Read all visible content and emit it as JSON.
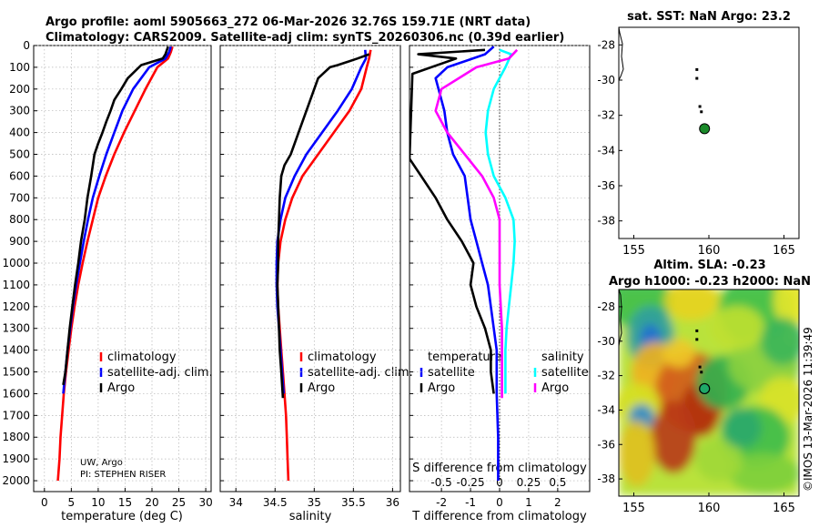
{
  "header": {
    "line1": "Argo profile: aoml 5905663_272 06-Mar-2026 32.76S 159.71E (NRT data)",
    "line2": "Climatology: CARS2009. Satellite-adj clim: synTS_20260306.nc (0.39d earlier)"
  },
  "credits": {
    "institution": "UW, Argo",
    "pi": "PI: STEPHEN RISER"
  },
  "watermark": "©IMOS 13-Mar-2026 11:39:49",
  "colors": {
    "climatology": "#ff0000",
    "satellite": "#0000ff",
    "argo": "#000000",
    "sat_salinity": "#00ffff",
    "argo_salinity": "#ff00ff"
  },
  "chart_data": [
    {
      "id": "temperature",
      "type": "line",
      "xlabel": "temperature (deg C)",
      "xlim": [
        -2,
        31
      ],
      "xticks": [
        0,
        5,
        10,
        15,
        20,
        25,
        30
      ],
      "ylim": [
        2050,
        0
      ],
      "yticks": [
        0,
        100,
        200,
        300,
        400,
        500,
        600,
        700,
        800,
        900,
        1000,
        1100,
        1200,
        1300,
        1400,
        1500,
        1600,
        1700,
        1800,
        1900,
        2000
      ],
      "legend": {
        "position": "lower-center",
        "entries": [
          "climatology",
          "satellite-adj. clim.",
          "Argo"
        ]
      },
      "series": [
        {
          "name": "climatology",
          "color": "#ff0000",
          "points": [
            [
              23.8,
              5
            ],
            [
              23.5,
              30
            ],
            [
              23,
              60
            ],
            [
              21,
              100
            ],
            [
              18.8,
              200
            ],
            [
              16.8,
              300
            ],
            [
              14.8,
              400
            ],
            [
              13,
              500
            ],
            [
              11.4,
              600
            ],
            [
              10,
              700
            ],
            [
              9,
              800
            ],
            [
              8,
              900
            ],
            [
              7.1,
              1000
            ],
            [
              6.3,
              1100
            ],
            [
              5.6,
              1200
            ],
            [
              5,
              1300
            ],
            [
              4.5,
              1400
            ],
            [
              4,
              1500
            ],
            [
              3.6,
              1600
            ],
            [
              3.3,
              1700
            ],
            [
              3,
              1800
            ],
            [
              2.8,
              1900
            ],
            [
              2.5,
              2000
            ]
          ]
        },
        {
          "name": "satellite-adj. clim.",
          "color": "#0000ff",
          "points": [
            [
              23.5,
              5
            ],
            [
              23.2,
              30
            ],
            [
              22.5,
              60
            ],
            [
              19.5,
              100
            ],
            [
              16.5,
              200
            ],
            [
              14.5,
              300
            ],
            [
              13,
              400
            ],
            [
              11.5,
              500
            ],
            [
              10.2,
              600
            ],
            [
              9,
              700
            ],
            [
              8.1,
              800
            ],
            [
              7.3,
              900
            ],
            [
              6.6,
              1000
            ],
            [
              5.9,
              1100
            ],
            [
              5.3,
              1200
            ],
            [
              4.8,
              1300
            ],
            [
              4.3,
              1400
            ],
            [
              3.9,
              1500
            ],
            [
              3.5,
              1600
            ]
          ]
        },
        {
          "name": "Argo",
          "color": "#000000",
          "points": [
            [
              23,
              5
            ],
            [
              22.5,
              40
            ],
            [
              22,
              60
            ],
            [
              18,
              90
            ],
            [
              15.5,
              150
            ],
            [
              14.3,
              200
            ],
            [
              13,
              250
            ],
            [
              12.3,
              300
            ],
            [
              11.5,
              350
            ],
            [
              10.8,
              400
            ],
            [
              10,
              450
            ],
            [
              9.3,
              500
            ],
            [
              8.7,
              600
            ],
            [
              8,
              700
            ],
            [
              7.5,
              800
            ],
            [
              6.8,
              900
            ],
            [
              6.3,
              1000
            ],
            [
              5.7,
              1100
            ],
            [
              5.2,
              1200
            ],
            [
              4.7,
              1300
            ],
            [
              4.3,
              1400
            ],
            [
              3.9,
              1500
            ],
            [
              3.5,
              1560
            ]
          ]
        }
      ]
    },
    {
      "id": "salinity",
      "type": "line",
      "xlabel": "salinity",
      "xlim": [
        33.8,
        36.1
      ],
      "xticks": [
        34,
        34.5,
        35,
        35.5,
        36
      ],
      "ylim": [
        2050,
        0
      ],
      "legend": {
        "position": "lower-center",
        "entries": [
          "climatology",
          "satellite-adj. clim.",
          "Argo"
        ]
      },
      "series": [
        {
          "name": "climatology",
          "color": "#ff0000",
          "points": [
            [
              35.72,
              20
            ],
            [
              35.7,
              60
            ],
            [
              35.67,
              100
            ],
            [
              35.6,
              200
            ],
            [
              35.45,
              300
            ],
            [
              35.25,
              400
            ],
            [
              35.05,
              500
            ],
            [
              34.85,
              600
            ],
            [
              34.72,
              700
            ],
            [
              34.63,
              800
            ],
            [
              34.57,
              900
            ],
            [
              34.54,
              1000
            ],
            [
              34.53,
              1100
            ],
            [
              34.54,
              1200
            ],
            [
              34.56,
              1300
            ],
            [
              34.58,
              1400
            ],
            [
              34.6,
              1500
            ],
            [
              34.62,
              1600
            ],
            [
              34.64,
              1700
            ],
            [
              34.65,
              1800
            ],
            [
              34.66,
              1900
            ],
            [
              34.67,
              2000
            ]
          ]
        },
        {
          "name": "satellite-adj. clim.",
          "color": "#0000ff",
          "points": [
            [
              35.65,
              20
            ],
            [
              35.66,
              60
            ],
            [
              35.6,
              100
            ],
            [
              35.48,
              200
            ],
            [
              35.3,
              300
            ],
            [
              35.1,
              400
            ],
            [
              34.9,
              500
            ],
            [
              34.75,
              600
            ],
            [
              34.63,
              700
            ],
            [
              34.57,
              800
            ],
            [
              34.53,
              900
            ],
            [
              34.52,
              1000
            ],
            [
              34.52,
              1100
            ],
            [
              34.53,
              1200
            ],
            [
              34.55,
              1300
            ],
            [
              34.57,
              1400
            ],
            [
              34.59,
              1500
            ],
            [
              34.61,
              1600
            ]
          ]
        },
        {
          "name": "Argo",
          "color": "#000000",
          "points": [
            [
              35.7,
              40
            ],
            [
              35.55,
              60
            ],
            [
              35.3,
              90
            ],
            [
              35.2,
              100
            ],
            [
              35.05,
              150
            ],
            [
              35,
              200
            ],
            [
              34.9,
              300
            ],
            [
              34.8,
              400
            ],
            [
              34.7,
              500
            ],
            [
              34.62,
              550
            ],
            [
              34.58,
              600
            ],
            [
              34.56,
              700
            ],
            [
              34.55,
              800
            ],
            [
              34.54,
              900
            ],
            [
              34.54,
              1000
            ],
            [
              34.53,
              1100
            ],
            [
              34.54,
              1200
            ],
            [
              34.55,
              1300
            ],
            [
              34.56,
              1400
            ],
            [
              34.58,
              1500
            ],
            [
              34.6,
              1620
            ]
          ]
        }
      ]
    },
    {
      "id": "difference",
      "type": "line",
      "xlabel": "T difference from climatology",
      "x2label": "S difference from climatology",
      "xlim": [
        -3.1,
        3.1
      ],
      "xticks": [
        -2,
        -1,
        0,
        1,
        2
      ],
      "x2lim": [
        -0.775,
        0.775
      ],
      "x2ticks": [
        -0.5,
        -0.25,
        0,
        0.25,
        0.5
      ],
      "ylim": [
        2050,
        0
      ],
      "legend": {
        "position": "lower-center",
        "group_titles": [
          "temperature",
          "salinity"
        ],
        "entries": [
          "satellite",
          "Argo",
          "satellite",
          "Argo"
        ]
      },
      "series": [
        {
          "name": "satellite (temperature)",
          "color": "#0000ff",
          "axis": "T",
          "points": [
            [
              -0.2,
              5
            ],
            [
              -0.5,
              40
            ],
            [
              -1.8,
              100
            ],
            [
              -2.2,
              150
            ],
            [
              -2.1,
              200
            ],
            [
              -1.9,
              300
            ],
            [
              -1.8,
              400
            ],
            [
              -1.6,
              500
            ],
            [
              -1.2,
              600
            ],
            [
              -1.1,
              700
            ],
            [
              -1,
              800
            ],
            [
              -0.8,
              900
            ],
            [
              -0.6,
              1000
            ],
            [
              -0.4,
              1100
            ],
            [
              -0.3,
              1200
            ],
            [
              -0.2,
              1300
            ],
            [
              -0.1,
              1400
            ],
            [
              -0.1,
              1500
            ],
            [
              -0.1,
              1600
            ],
            [
              -0.05,
              1800
            ],
            [
              -0.05,
              2000
            ]
          ]
        },
        {
          "name": "Argo (temperature)",
          "color": "#000000",
          "axis": "T",
          "points": [
            [
              -0.5,
              20
            ],
            [
              -2.8,
              40
            ],
            [
              -1.5,
              60
            ],
            [
              -3,
              130
            ],
            [
              -3.1,
              520
            ],
            [
              -2.7,
              600
            ],
            [
              -2.2,
              700
            ],
            [
              -1.8,
              800
            ],
            [
              -1.3,
              900
            ],
            [
              -0.9,
              1000
            ],
            [
              -1,
              1100
            ],
            [
              -0.8,
              1200
            ],
            [
              -0.5,
              1300
            ],
            [
              -0.3,
              1400
            ],
            [
              -0.3,
              1500
            ],
            [
              -0.2,
              1600
            ]
          ]
        },
        {
          "name": "satellite (salinity)",
          "color": "#00ffff",
          "axis": "S",
          "points": [
            [
              0,
              20
            ],
            [
              0.1,
              40
            ],
            [
              0.05,
              100
            ],
            [
              -0.05,
              200
            ],
            [
              -0.1,
              300
            ],
            [
              -0.12,
              400
            ],
            [
              -0.1,
              500
            ],
            [
              -0.05,
              600
            ],
            [
              0.05,
              700
            ],
            [
              0.12,
              800
            ],
            [
              0.13,
              900
            ],
            [
              0.12,
              1000
            ],
            [
              0.1,
              1100
            ],
            [
              0.08,
              1200
            ],
            [
              0.06,
              1300
            ],
            [
              0.05,
              1400
            ],
            [
              0.05,
              1500
            ],
            [
              0.05,
              1600
            ]
          ]
        },
        {
          "name": "Argo (salinity)",
          "color": "#ff00ff",
          "axis": "S",
          "points": [
            [
              0.15,
              20
            ],
            [
              0.08,
              60
            ],
            [
              -0.2,
              100
            ],
            [
              -0.5,
              200
            ],
            [
              -0.55,
              300
            ],
            [
              -0.45,
              400
            ],
            [
              -0.3,
              500
            ],
            [
              -0.15,
              600
            ],
            [
              -0.05,
              700
            ],
            [
              0,
              800
            ],
            [
              0,
              900
            ],
            [
              0,
              1000
            ],
            [
              0,
              1100
            ],
            [
              0.01,
              1200
            ],
            [
              0.02,
              1300
            ],
            [
              0.02,
              1400
            ],
            [
              0.02,
              1500
            ],
            [
              0.02,
              1620
            ]
          ]
        }
      ]
    },
    {
      "id": "sst_map",
      "type": "scatter",
      "title": "sat. SST: NaN Argo: 23.2",
      "xlim": [
        154,
        166
      ],
      "ylim": [
        -39,
        -27
      ],
      "xticks": [
        155,
        160,
        165
      ],
      "yticks": [
        -28,
        -30,
        -32,
        -34,
        -36,
        -38
      ],
      "track": [
        [
          159.2,
          -29.4
        ],
        [
          159.2,
          -29.9
        ],
        [
          159.4,
          -31.5
        ],
        [
          159.5,
          -31.8
        ]
      ],
      "profile": [
        159.71,
        -32.76
      ]
    },
    {
      "id": "sla_map",
      "type": "heatmap",
      "title_line1": "Altim. SLA: -0.23",
      "title_line2": "Argo h1000: -0.23 h2000: NaN",
      "xlim": [
        154,
        166
      ],
      "ylim": [
        -39,
        -27
      ],
      "xticks": [
        155,
        160,
        165
      ],
      "yticks": [
        -28,
        -30,
        -32,
        -34,
        -36,
        -38
      ],
      "track": [
        [
          159.2,
          -29.4
        ],
        [
          159.2,
          -29.9
        ],
        [
          159.4,
          -31.5
        ],
        [
          159.5,
          -31.8
        ]
      ],
      "profile": [
        159.71,
        -32.76
      ]
    }
  ]
}
